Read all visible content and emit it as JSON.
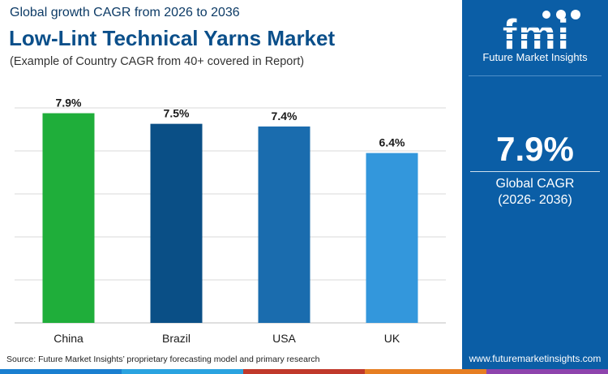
{
  "header": {
    "subtitle": "Global growth CAGR from 2026 to 2036",
    "title": "Low-Lint Technical Yarns Market",
    "note": "(Example of Country CAGR from 40+ covered in Report)"
  },
  "source": "Source: Future Market Insights’ proprietary forecasting model and primary research",
  "sidebar": {
    "brand_letters": "fmi",
    "brand_name": "Future Market Insights",
    "kpi_value": "7.9%",
    "kpi_label": "Global CAGR",
    "kpi_period": "(2026- 2036)",
    "website": "www.futuremarketinsights.com"
  },
  "colors": {
    "panel": "#0b5ea6",
    "title": "#0b4f8a",
    "strip": [
      "#1a7fd0",
      "#2aa3e0",
      "#c0392b",
      "#e67e22",
      "#8e44ad"
    ]
  },
  "chart_data": {
    "type": "bar",
    "categories": [
      "China",
      "Brazil",
      "USA",
      "UK"
    ],
    "values": [
      7.9,
      7.5,
      7.4,
      6.4
    ],
    "value_labels": [
      "7.9%",
      "7.5%",
      "7.4%",
      "6.4%"
    ],
    "bar_colors": [
      "#1fae3a",
      "#0a4f86",
      "#1a6cae",
      "#3397dc"
    ],
    "ylim": [
      0,
      8.1
    ],
    "grid": true,
    "title": "",
    "xlabel": "",
    "ylabel": ""
  }
}
